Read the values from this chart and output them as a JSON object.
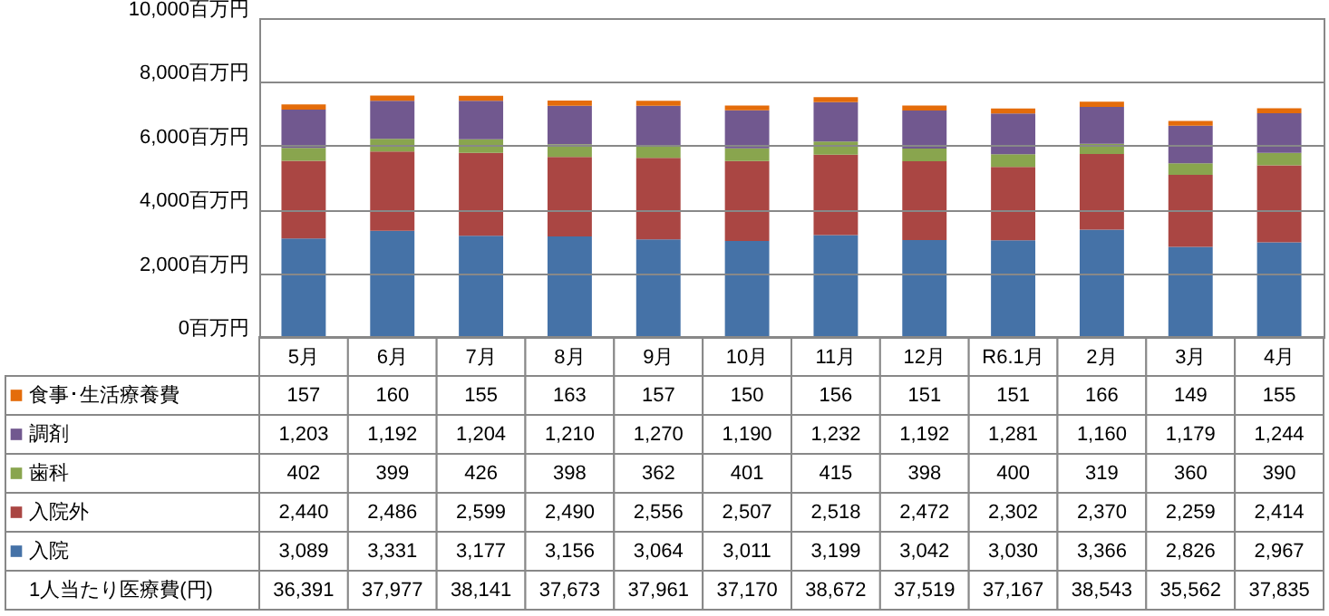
{
  "chart_data": {
    "type": "bar",
    "stacked": true,
    "categories": [
      "5月",
      "6月",
      "7月",
      "8月",
      "9月",
      "10月",
      "11月",
      "12月",
      "R6.1月",
      "2月",
      "3月",
      "4月"
    ],
    "series": [
      {
        "name": "入院",
        "color": "#4572a7",
        "values": [
          3089,
          3331,
          3177,
          3156,
          3064,
          3011,
          3199,
          3042,
          3030,
          3366,
          2826,
          2967
        ],
        "value_labels": [
          "3,089",
          "3,331",
          "3,177",
          "3,156",
          "3,064",
          "3,011",
          "3,199",
          "3,042",
          "3,030",
          "3,366",
          "2,826",
          "2,967"
        ]
      },
      {
        "name": "入院外",
        "color": "#aa4643",
        "values": [
          2440,
          2486,
          2599,
          2490,
          2556,
          2507,
          2518,
          2472,
          2302,
          2370,
          2259,
          2414
        ],
        "value_labels": [
          "2,440",
          "2,486",
          "2,599",
          "2,490",
          "2,556",
          "2,507",
          "2,518",
          "2,472",
          "2,302",
          "2,370",
          "2,259",
          "2,414"
        ]
      },
      {
        "name": "歯科",
        "color": "#89a54e",
        "values": [
          402,
          399,
          426,
          398,
          362,
          401,
          415,
          398,
          400,
          319,
          360,
          390
        ],
        "value_labels": [
          "402",
          "399",
          "426",
          "398",
          "362",
          "401",
          "415",
          "398",
          "400",
          "319",
          "360",
          "390"
        ]
      },
      {
        "name": "調剤",
        "color": "#71588f",
        "values": [
          1203,
          1192,
          1204,
          1210,
          1270,
          1190,
          1232,
          1192,
          1281,
          1160,
          1179,
          1244
        ],
        "value_labels": [
          "1,203",
          "1,192",
          "1,204",
          "1,210",
          "1,270",
          "1,190",
          "1,232",
          "1,192",
          "1,281",
          "1,160",
          "1,179",
          "1,244"
        ]
      },
      {
        "name": "食事･生活療養費",
        "color": "#e46c0a",
        "values": [
          157,
          160,
          155,
          163,
          157,
          150,
          156,
          151,
          151,
          166,
          149,
          155
        ],
        "value_labels": [
          "157",
          "160",
          "155",
          "163",
          "157",
          "150",
          "156",
          "151",
          "151",
          "166",
          "149",
          "155"
        ]
      }
    ],
    "ylim": [
      0,
      10000
    ],
    "yticks": [
      {
        "value": 0,
        "label": "0百万円"
      },
      {
        "value": 2000,
        "label": "2,000百万円"
      },
      {
        "value": 4000,
        "label": "4,000百万円"
      },
      {
        "value": 6000,
        "label": "6,000百万円"
      },
      {
        "value": 8000,
        "label": "8,000百万円"
      },
      {
        "value": 10000,
        "label": "10,000百万円"
      }
    ],
    "grid": "y",
    "legend": "bottom",
    "annotations": [
      "1人当たり医療費(円)",
      "36,391",
      "37,977",
      "38,141",
      "37,673",
      "37,961",
      "37,170",
      "38,672",
      "37,519",
      "37,167",
      "38,543",
      "35,562",
      "37,835"
    ]
  }
}
